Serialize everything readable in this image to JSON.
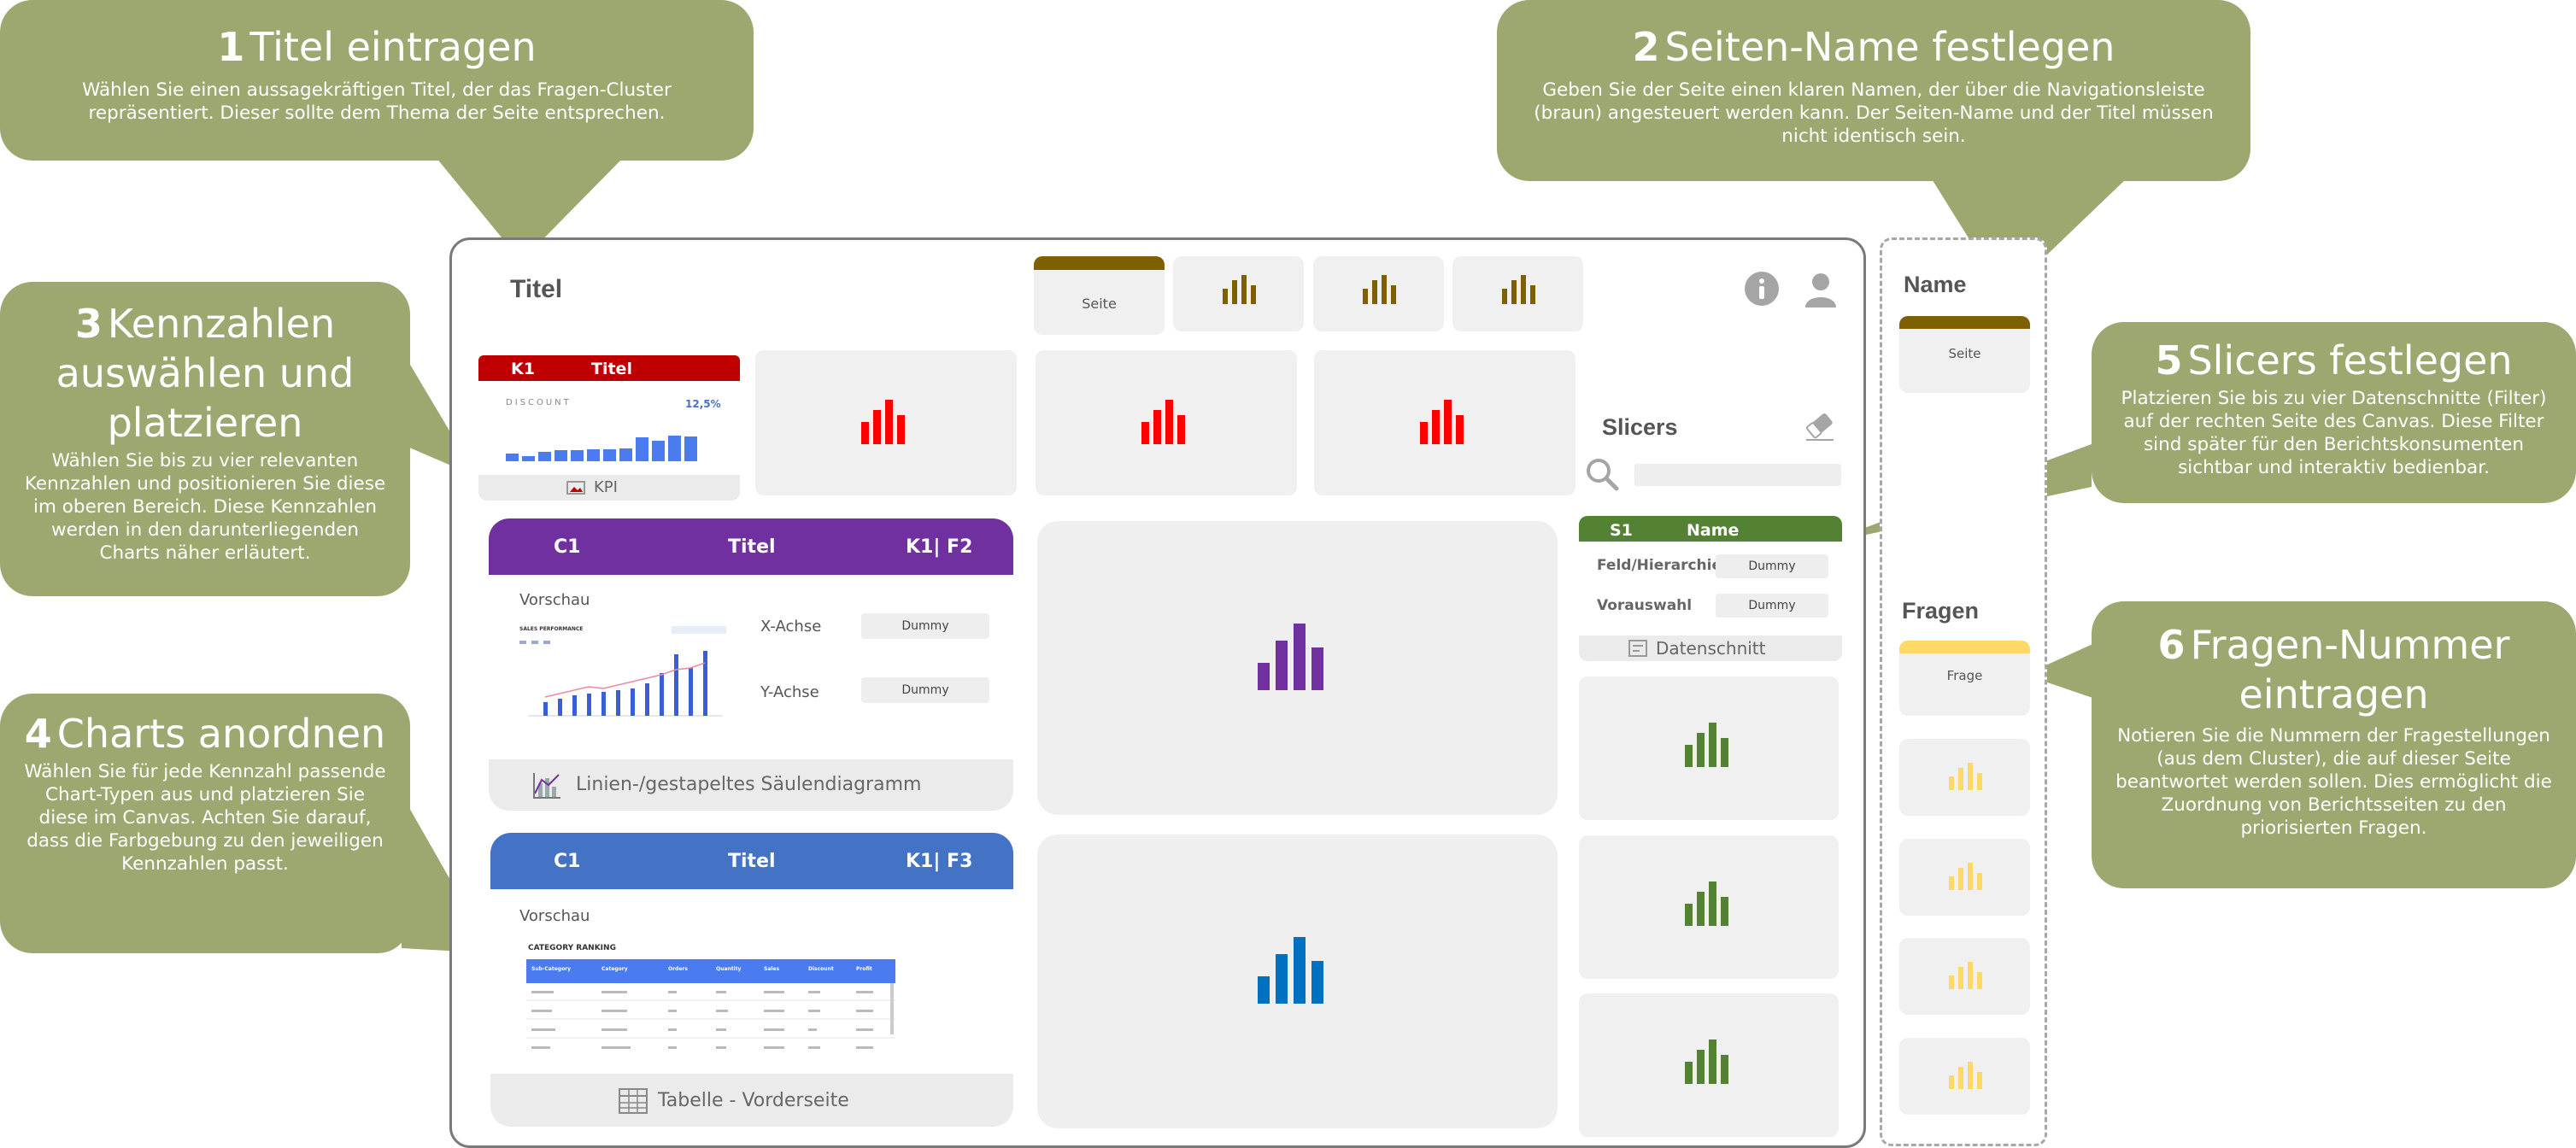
{
  "callouts": [
    {
      "num": "1",
      "title": "Titel eintragen",
      "body": "Wählen Sie einen aussagekräftigen Titel, der das Fragen-Cluster repräsentiert. Dieser sollte dem Thema der Seite entsprechen."
    },
    {
      "num": "2",
      "title": "Seiten-Name festlegen",
      "body": "Geben Sie der Seite einen klaren Namen, der über die Navigationsleiste (braun) angesteuert werden kann. Der Seiten-Name und der Titel müssen nicht identisch sein."
    },
    {
      "num": "3",
      "title": "Kennzahlen auswählen und platzieren",
      "body": "Wählen Sie bis zu vier relevanten Kennzahlen und positionieren Sie diese im oberen Bereich. Diese Kennzahlen werden in den darunterliegenden Charts näher erläutert."
    },
    {
      "num": "4",
      "title": "Charts anordnen",
      "body": "Wählen Sie für jede Kennzahl passende Chart-Typen aus und platzieren Sie diese im Canvas. Achten Sie darauf, dass die Farbgebung zu den jeweiligen Kennzahlen passt."
    },
    {
      "num": "5",
      "title": "Slicers festlegen",
      "body": "Platzieren Sie bis zu vier Datenschnitte (Filter) auf der rechten Seite des Canvas. Diese Filter sind später für den Berichtskonsumenten sichtbar und interaktiv bedienbar."
    },
    {
      "num": "6",
      "title": "Fragen-Nummer eintragen",
      "body": "Notieren Sie die Nummern der Fragestellungen (aus dem Cluster), die auf dieser Seite beantwortet werden sollen. Dies ermöglicht die Zuordnung von Berichtsseiten zu den priorisierten Fragen."
    }
  ],
  "canvas": {
    "title": "Titel",
    "nav_tab_label": "Seite",
    "kpi": {
      "id": "K1",
      "title": "Titel",
      "metric": "DISCOUNT",
      "value": "12,5%",
      "footer": "KPI"
    },
    "chart1": {
      "id": "C1",
      "title": "Titel",
      "ref": "K1| F2",
      "preview": "Vorschau",
      "mini_title": "SALES PERFORMANCE",
      "x_label": "X-Achse",
      "y_label": "Y-Achse",
      "dummy": "Dummy",
      "footer": "Linien-/gestapeltes Säulendiagramm"
    },
    "chart2": {
      "id": "C1",
      "title": "Titel",
      "ref": "K1| F3",
      "preview": "Vorschau",
      "table_title": "CATEGORY RANKING",
      "columns": [
        "Sub-Category",
        "Category",
        "Orders",
        "Quantity",
        "Sales",
        "Discount",
        "Profit"
      ],
      "footer": "Tabelle - Vorderseite"
    },
    "slicers": {
      "title": "Slicers",
      "id": "S1",
      "name": "Name",
      "field_label": "Feld/Hierarchie",
      "preset_label": "Vorauswahl",
      "dummy": "Dummy",
      "footer": "Datenschnitt"
    }
  },
  "nav_panel": {
    "name_title": "Name",
    "page_label": "Seite",
    "questions_title": "Fragen",
    "question_label": "Frage"
  },
  "colors": {
    "callout": "#9ca870",
    "kpi": "#c00000",
    "chart1": "#7030a0",
    "chart2": "#4472c4",
    "slicer": "#548235",
    "nav": "#7f6000",
    "question": "#ffd966"
  }
}
